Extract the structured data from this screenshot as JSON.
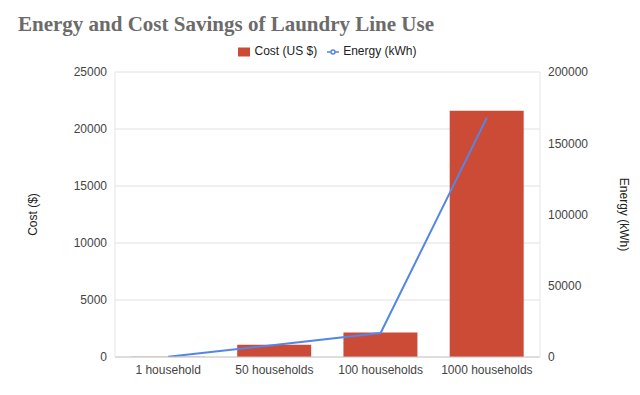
{
  "chart_data": {
    "type": "bar",
    "title": "Energy and Cost Savings of Laundry Line Use",
    "categories": [
      "1 household",
      "50 households",
      "100 households",
      "1000 households"
    ],
    "series": [
      {
        "name": "Cost (US $)",
        "type": "bar",
        "color": "#cc4b37",
        "values": [
          21.6,
          1080,
          2160,
          21600
        ]
      },
      {
        "name": "Energy (kWh)",
        "type": "line",
        "color": "#5485e8",
        "axis": "y2",
        "values": [
          168,
          8400,
          16800,
          168000
        ]
      }
    ],
    "y_label": "Cost ($)",
    "y2_label": "Energy (kWh)",
    "ylim": [
      0,
      25000
    ],
    "yticks": [
      0,
      5000,
      10000,
      15000,
      20000,
      25000
    ],
    "y2lim": [
      0,
      200000
    ],
    "y2ticks": [
      0,
      50000,
      100000,
      150000,
      200000
    ],
    "grid": true,
    "legend": "top"
  }
}
